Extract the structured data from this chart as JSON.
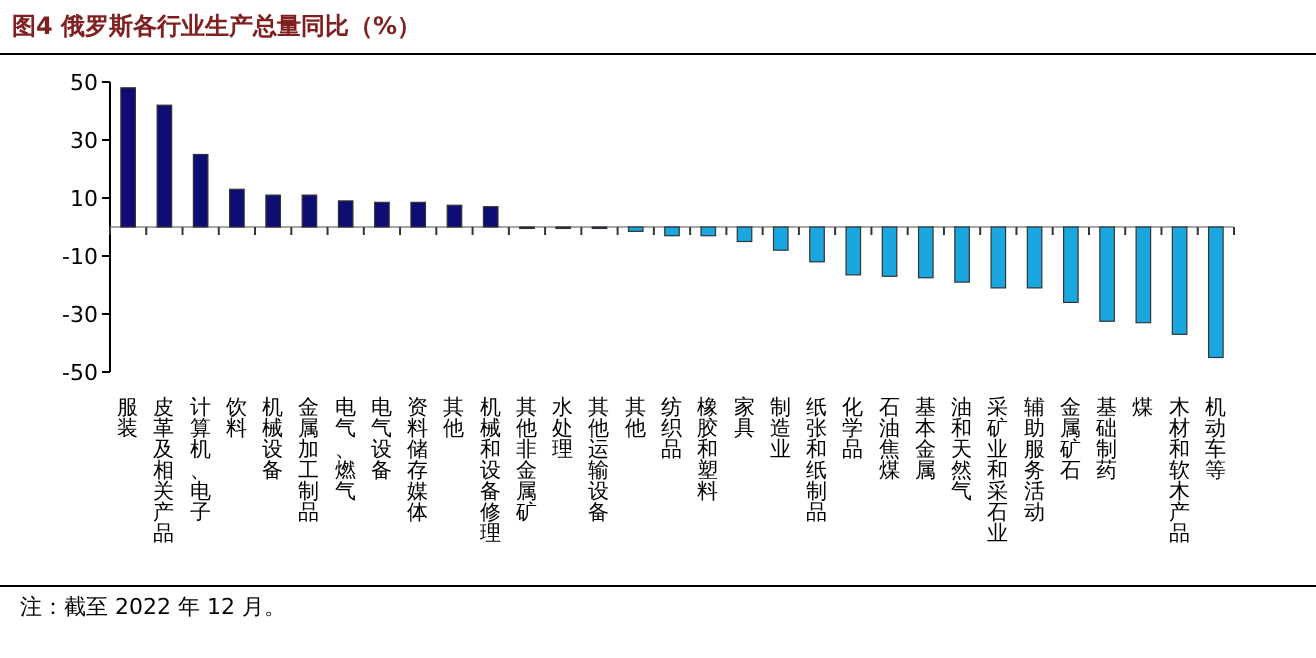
{
  "chart_data": {
    "type": "bar",
    "title": "图4  俄罗斯各行业生产总量同比（%）",
    "categories": [
      "服装",
      "皮革及相关产品",
      "计算机、电子",
      "饮料",
      "机械设备",
      "金属加工制品",
      "电气、燃气",
      "电气设备",
      "资料储存媒体",
      "其他",
      "机械和设备修理",
      "其他非金属矿",
      "水处理",
      "其他运输设备",
      "其他",
      "纺织品",
      "橡胶和塑料",
      "家具",
      "制造业",
      "纸张和纸制品",
      "化学品",
      "石油焦煤",
      "基本金属",
      "油和天然气",
      "采矿业和采石业",
      "辅助服务活动",
      "金属矿石",
      "基础制药",
      "煤",
      "木材和软木产品",
      "机动车等"
    ],
    "values": [
      48,
      42,
      25,
      13,
      11,
      11,
      9,
      8.5,
      8.5,
      7.5,
      7,
      -0.5,
      -0.5,
      -0.5,
      -1.5,
      -3,
      -3,
      -5,
      -8,
      -12,
      -16.5,
      -17,
      -17.5,
      -19,
      -21,
      -21,
      -26,
      -32.5,
      -33,
      -37,
      -45
    ],
    "colors": [
      "#0d0d73",
      "#0d0d73",
      "#0d0d73",
      "#0d0d73",
      "#0d0d73",
      "#0d0d73",
      "#0d0d73",
      "#0d0d73",
      "#0d0d73",
      "#0d0d73",
      "#0d0d73",
      "#0d0d73",
      "#0d0d73",
      "#0d0d73",
      "#1aa7e0",
      "#1aa7e0",
      "#1aa7e0",
      "#1aa7e0",
      "#1aa7e0",
      "#1aa7e0",
      "#1aa7e0",
      "#1aa7e0",
      "#1aa7e0",
      "#1aa7e0",
      "#1aa7e0",
      "#1aa7e0",
      "#1aa7e0",
      "#1aa7e0",
      "#1aa7e0",
      "#1aa7e0",
      "#1aa7e0"
    ],
    "ylim": [
      -50,
      50
    ],
    "yticks": [
      -50,
      -30,
      -10,
      10,
      30,
      50
    ],
    "grid": false,
    "annotations": [
      "注：截至 2022 年 12 月。"
    ]
  }
}
